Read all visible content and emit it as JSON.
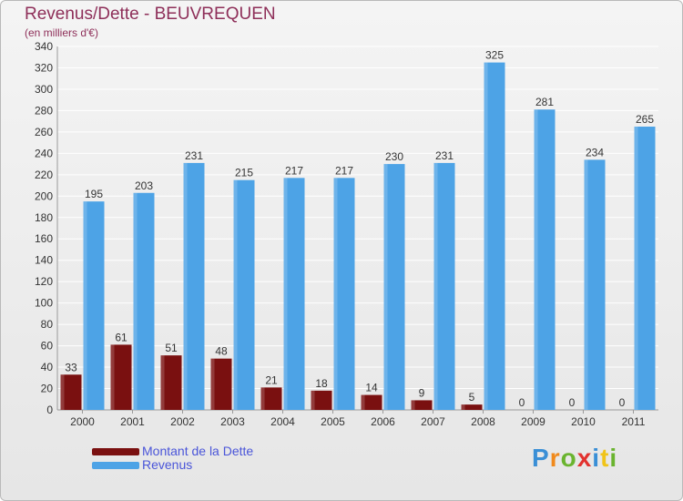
{
  "chart_data": {
    "type": "bar",
    "title": "Revenus/Dette - BEUVREQUEN",
    "subtitle": "(en milliers d'€)",
    "categories": [
      "2000",
      "2001",
      "2002",
      "2003",
      "2004",
      "2005",
      "2006",
      "2007",
      "2008",
      "2009",
      "2010",
      "2011"
    ],
    "series": [
      {
        "name": "Montant de la Dette",
        "color": "#7a1010",
        "values": [
          33,
          61,
          51,
          48,
          21,
          18,
          14,
          9,
          5,
          0,
          0,
          0
        ]
      },
      {
        "name": "Revenus",
        "color": "#4da3e6",
        "values": [
          195,
          203,
          231,
          215,
          217,
          217,
          230,
          231,
          325,
          281,
          234,
          265
        ]
      }
    ],
    "ylim": [
      0,
      340
    ],
    "yticks": [
      0,
      20,
      40,
      60,
      80,
      100,
      120,
      140,
      160,
      180,
      200,
      220,
      240,
      260,
      280,
      300,
      320,
      340
    ],
    "grid": true,
    "legend": "bottom-left"
  },
  "logo": {
    "text": "Proxiti",
    "letter_colors": [
      "#3a8fd6",
      "#f08a1c",
      "#6ab42f",
      "#e2322f",
      "#3a8fd6",
      "#f0c419",
      "#6ab42f"
    ]
  }
}
